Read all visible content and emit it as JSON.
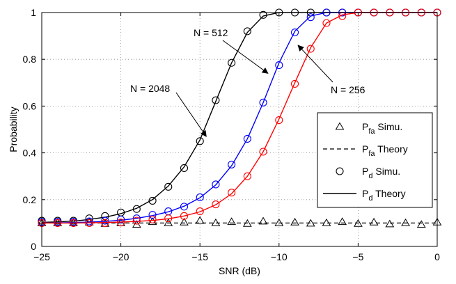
{
  "chart_data": {
    "type": "line",
    "xlabel": "SNR (dB)",
    "ylabel": "Probability",
    "xlim": [
      -25,
      0
    ],
    "ylim": [
      0,
      1
    ],
    "xticks": [
      -25,
      -20,
      -15,
      -10,
      -5,
      0
    ],
    "xtick_labels": [
      "−25",
      "−20",
      "−15",
      "−10",
      "−5",
      "0"
    ],
    "yticks": [
      0,
      0.2,
      0.4,
      0.6,
      0.8,
      1
    ],
    "ytick_labels": [
      "0",
      "0.2",
      "0.4",
      "0.6",
      "0.8",
      "1"
    ],
    "grid": true,
    "grid_style": "dotted",
    "legend_position": "bottom-right",
    "legend": [
      {
        "label": "P",
        "sub": "fa",
        "suffix": " Simu.",
        "marker": "triangle",
        "line": "none"
      },
      {
        "label": "P",
        "sub": "fa",
        "suffix": " Theory",
        "marker": "none",
        "line": "dashed"
      },
      {
        "label": "P",
        "sub": "d",
        "suffix": " Simu.",
        "marker": "circle",
        "line": "none"
      },
      {
        "label": "P",
        "sub": "d",
        "suffix": " Theory",
        "marker": "none",
        "line": "solid"
      }
    ],
    "x": [
      -25,
      -24,
      -23,
      -22,
      -21,
      -20,
      -19,
      -18,
      -17,
      -16,
      -15,
      -14,
      -13,
      -12,
      -11,
      -10,
      -9,
      -8,
      -7,
      -6,
      -5,
      -4,
      -3,
      -2,
      -1,
      0
    ],
    "pfa": {
      "color": "#000000",
      "theory": 0.1,
      "simulated": [
        0.1,
        0.1,
        0.1,
        0.103,
        0.097,
        0.1,
        0.093,
        0.105,
        0.1,
        0.103,
        0.11,
        0.1,
        0.105,
        0.097,
        0.107,
        0.1,
        0.103,
        0.098,
        0.1,
        0.105,
        0.097,
        0.103,
        0.095,
        0.1,
        0.093,
        0.103
      ]
    },
    "pd_series": [
      {
        "color": "#000000",
        "simulated": [
          0.11,
          0.11,
          0.11,
          0.12,
          0.13,
          0.145,
          0.16,
          0.195,
          0.255,
          0.335,
          0.45,
          0.625,
          0.785,
          0.92,
          0.99,
          1.0,
          1.0,
          1.0,
          1.0,
          1.0,
          1.0,
          1.0,
          1.0,
          1.0,
          1.0,
          1.0
        ],
        "theory": [
          0.103,
          0.105,
          0.108,
          0.115,
          0.125,
          0.14,
          0.163,
          0.2,
          0.258,
          0.34,
          0.455,
          0.62,
          0.785,
          0.915,
          0.985,
          1.0,
          1.0,
          1.0,
          1.0,
          1.0,
          1.0,
          1.0,
          1.0,
          1.0,
          1.0,
          1.0
        ]
      },
      {
        "color": "#0000ff",
        "simulated": [
          0.105,
          0.105,
          0.105,
          0.107,
          0.11,
          0.115,
          0.12,
          0.135,
          0.15,
          0.17,
          0.21,
          0.265,
          0.35,
          0.46,
          0.615,
          0.775,
          0.915,
          0.98,
          1.0,
          1.0,
          1.0,
          1.0,
          1.0,
          1.0,
          1.0,
          1.0
        ],
        "theory": [
          0.1,
          0.101,
          0.102,
          0.104,
          0.107,
          0.112,
          0.12,
          0.132,
          0.148,
          0.172,
          0.208,
          0.263,
          0.345,
          0.46,
          0.615,
          0.785,
          0.92,
          0.985,
          1.0,
          1.0,
          1.0,
          1.0,
          1.0,
          1.0,
          1.0,
          1.0
        ]
      },
      {
        "color": "#ff0000",
        "simulated": [
          0.1,
          0.1,
          0.1,
          0.1,
          0.1,
          0.102,
          0.11,
          0.115,
          0.12,
          0.13,
          0.15,
          0.18,
          0.23,
          0.3,
          0.405,
          0.54,
          0.695,
          0.845,
          0.955,
          0.985,
          1.0,
          1.0,
          1.0,
          1.0,
          1.0,
          1.0
        ],
        "theory": [
          0.1,
          0.1,
          0.1,
          0.101,
          0.102,
          0.104,
          0.107,
          0.111,
          0.118,
          0.13,
          0.148,
          0.178,
          0.225,
          0.3,
          0.405,
          0.545,
          0.7,
          0.85,
          0.955,
          0.99,
          1.0,
          1.0,
          1.0,
          1.0,
          1.0,
          1.0
        ]
      }
    ],
    "annotations": [
      {
        "text": "N = 2048",
        "points_to": [
          -14.6,
          0.47
        ]
      },
      {
        "text": "N = 512",
        "points_to": [
          -10.7,
          0.74
        ]
      },
      {
        "text": "N = 256",
        "points_to": [
          -8.8,
          0.86
        ]
      }
    ]
  }
}
